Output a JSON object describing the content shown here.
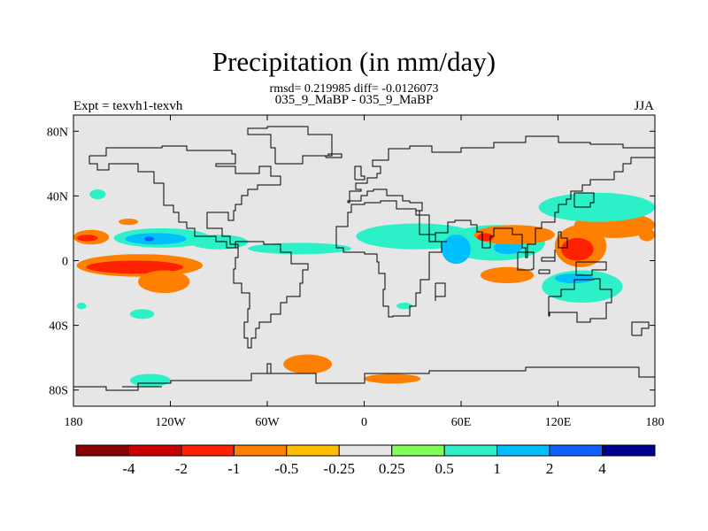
{
  "chart_data": {
    "type": "heatmap",
    "title": "Precipitation (in mm/day)",
    "subtitle": "rmsd= 0.219985 diff= -0.0126073",
    "subtitle2": "035_9_MaBP - 035_9_MaBP",
    "left_string": "Expt = texvh1-texvh",
    "right_string": "JJA",
    "x_ticks": [
      "180",
      "120W",
      "60W",
      "0",
      "60E",
      "120E",
      "180"
    ],
    "x_tick_values": [
      -180,
      -120,
      -60,
      0,
      60,
      120,
      180
    ],
    "y_ticks": [
      "80N",
      "40N",
      "0",
      "40S",
      "80S"
    ],
    "y_tick_values": [
      80,
      40,
      0,
      -40,
      -80
    ],
    "xlim": [
      -180,
      180
    ],
    "ylim": [
      -90,
      90
    ],
    "colorbar": {
      "labels": [
        "-4",
        "-2",
        "-1",
        "-0.5",
        "-0.25",
        "0.25",
        "0.5",
        "1",
        "2",
        "4"
      ],
      "colors": [
        "#8b0000",
        "#cc0000",
        "#ff2200",
        "#ff7f00",
        "#ffbf00",
        "#e6e6e6",
        "#80ff5a",
        "#2bf0c8",
        "#00bfff",
        "#1060ff",
        "#000090"
      ]
    },
    "background_color": "#e6e6e6",
    "regions": [
      {
        "level": "-0.5",
        "lon": [
          -180,
          -158
        ],
        "lat": [
          10,
          19
        ]
      },
      {
        "level": "-1",
        "lon": [
          -178,
          -165
        ],
        "lat": [
          12,
          16
        ]
      },
      {
        "level": "-0.5",
        "lon": [
          -152,
          -140
        ],
        "lat": [
          22,
          26
        ]
      },
      {
        "level": "-0.5",
        "lon": [
          -178,
          -100
        ],
        "lat": [
          -10,
          4
        ]
      },
      {
        "level": "-1",
        "lon": [
          -172,
          -112
        ],
        "lat": [
          -8,
          0
        ]
      },
      {
        "level": "-0.5",
        "lon": [
          -140,
          -108
        ],
        "lat": [
          -20,
          -6
        ]
      },
      {
        "level": "0.5",
        "lon": [
          -155,
          -95
        ],
        "lat": [
          8,
          20
        ]
      },
      {
        "level": "1",
        "lon": [
          -148,
          -110
        ],
        "lat": [
          10,
          17
        ]
      },
      {
        "level": "2",
        "lon": [
          -136,
          -130
        ],
        "lat": [
          12,
          15
        ]
      },
      {
        "level": "0.5",
        "lon": [
          -108,
          -72
        ],
        "lat": [
          7,
          16
        ]
      },
      {
        "level": "0.5",
        "lon": [
          -72,
          -8
        ],
        "lat": [
          4,
          11
        ]
      },
      {
        "level": "0.5",
        "lon": [
          -5,
          70
        ],
        "lat": [
          7,
          23
        ]
      },
      {
        "level": "0.5",
        "lon": [
          50,
          112
        ],
        "lat": [
          0,
          22
        ]
      },
      {
        "level": "1",
        "lon": [
          48,
          66
        ],
        "lat": [
          -2,
          16
        ]
      },
      {
        "level": "1",
        "lon": [
          80,
          98
        ],
        "lat": [
          4,
          12
        ]
      },
      {
        "level": "-0.5",
        "lon": [
          68,
          118
        ],
        "lat": [
          10,
          22
        ]
      },
      {
        "level": "-1",
        "lon": [
          70,
          80
        ],
        "lat": [
          12,
          17
        ]
      },
      {
        "level": "-0.5",
        "lon": [
          118,
          150
        ],
        "lat": [
          -4,
          22
        ]
      },
      {
        "level": "-1",
        "lon": [
          122,
          142
        ],
        "lat": [
          0,
          14
        ]
      },
      {
        "level": "-0.5",
        "lon": [
          72,
          105
        ],
        "lat": [
          -14,
          -4
        ]
      },
      {
        "level": "0.5",
        "lon": [
          110,
          160
        ],
        "lat": [
          -26,
          -6
        ]
      },
      {
        "level": "1",
        "lon": [
          118,
          142
        ],
        "lat": [
          -14,
          -8
        ]
      },
      {
        "level": "-0.5",
        "lon": [
          130,
          180
        ],
        "lat": [
          14,
          30
        ]
      },
      {
        "level": "0.5",
        "lon": [
          108,
          180
        ],
        "lat": [
          24,
          42
        ]
      },
      {
        "level": "-0.5",
        "lon": [
          170,
          180
        ],
        "lat": [
          12,
          20
        ]
      },
      {
        "level": "0.5",
        "lon": [
          -170,
          -160
        ],
        "lat": [
          38,
          44
        ]
      },
      {
        "level": "0.5",
        "lon": [
          -145,
          -130
        ],
        "lat": [
          -36,
          -30
        ]
      },
      {
        "level": "-0.5",
        "lon": [
          -50,
          -20
        ],
        "lat": [
          -70,
          -58
        ]
      },
      {
        "level": "-0.5",
        "lon": [
          0,
          35
        ],
        "lat": [
          -76,
          -70
        ]
      },
      {
        "level": "0.5",
        "lon": [
          -145,
          -120
        ],
        "lat": [
          -78,
          -70
        ]
      },
      {
        "level": "0.5",
        "lon": [
          20,
          30
        ],
        "lat": [
          -30,
          -26
        ]
      },
      {
        "level": "0.5",
        "lon": [
          -178,
          -172
        ],
        "lat": [
          -30,
          -26
        ]
      }
    ],
    "coastlines": [
      [
        [
          -170,
          65
        ],
        [
          -160,
          70
        ],
        [
          -140,
          70
        ],
        [
          -125,
          71
        ],
        [
          -110,
          68
        ],
        [
          -95,
          68
        ],
        [
          -82,
          66
        ],
        [
          -80,
          60
        ],
        [
          -92,
          58
        ],
        [
          -80,
          54
        ],
        [
          -65,
          58
        ],
        [
          -58,
          52
        ],
        [
          -52,
          47
        ],
        [
          -66,
          44
        ],
        [
          -72,
          40
        ],
        [
          -76,
          35
        ],
        [
          -80,
          31
        ],
        [
          -81,
          25
        ],
        [
          -84,
          30
        ],
        [
          -90,
          30
        ],
        [
          -97,
          26
        ],
        [
          -97,
          20
        ],
        [
          -90,
          20
        ],
        [
          -88,
          15
        ],
        [
          -83,
          10
        ],
        [
          -78,
          8
        ],
        [
          -80,
          8
        ],
        [
          -85,
          12
        ],
        [
          -92,
          15
        ],
        [
          -105,
          20
        ],
        [
          -110,
          24
        ],
        [
          -115,
          30
        ],
        [
          -118,
          34
        ],
        [
          -124,
          40
        ],
        [
          -124,
          48
        ],
        [
          -130,
          55
        ],
        [
          -140,
          60
        ],
        [
          -150,
          60
        ],
        [
          -158,
          56
        ],
        [
          -165,
          60
        ],
        [
          -170,
          65
        ]
      ],
      [
        [
          -80,
          12
        ],
        [
          -72,
          12
        ],
        [
          -62,
          10
        ],
        [
          -52,
          5
        ],
        [
          -45,
          -2
        ],
        [
          -35,
          -6
        ],
        [
          -38,
          -14
        ],
        [
          -40,
          -22
        ],
        [
          -48,
          -26
        ],
        [
          -52,
          -33
        ],
        [
          -58,
          -38
        ],
        [
          -65,
          -42
        ],
        [
          -67,
          -48
        ],
        [
          -70,
          -54
        ],
        [
          -72,
          -48
        ],
        [
          -74,
          -38
        ],
        [
          -72,
          -30
        ],
        [
          -71,
          -20
        ],
        [
          -76,
          -14
        ],
        [
          -81,
          -5
        ],
        [
          -80,
          2
        ],
        [
          -78,
          8
        ],
        [
          -80,
          12
        ]
      ],
      [
        [
          -55,
          60
        ],
        [
          -45,
          60
        ],
        [
          -38,
          65
        ],
        [
          -20,
          70
        ],
        [
          -20,
          78
        ],
        [
          -35,
          83
        ],
        [
          -60,
          82
        ],
        [
          -72,
          78
        ],
        [
          -58,
          70
        ],
        [
          -55,
          60
        ]
      ],
      [
        [
          -10,
          36
        ],
        [
          -9,
          43
        ],
        [
          -2,
          44
        ],
        [
          -5,
          48
        ],
        [
          2,
          51
        ],
        [
          8,
          54
        ],
        [
          10,
          58
        ],
        [
          5,
          62
        ],
        [
          15,
          69
        ],
        [
          28,
          71
        ],
        [
          42,
          67
        ],
        [
          60,
          70
        ],
        [
          80,
          73
        ],
        [
          100,
          77
        ],
        [
          120,
          73
        ],
        [
          140,
          72
        ],
        [
          160,
          70
        ],
        [
          180,
          68
        ],
        [
          180,
          64
        ],
        [
          165,
          60
        ],
        [
          160,
          55
        ],
        [
          155,
          50
        ],
        [
          140,
          47
        ],
        [
          135,
          43
        ],
        [
          128,
          38
        ],
        [
          125,
          35
        ],
        [
          120,
          30
        ],
        [
          118,
          24
        ],
        [
          110,
          20
        ],
        [
          106,
          10
        ],
        [
          101,
          2
        ],
        [
          100,
          8
        ],
        [
          98,
          16
        ],
        [
          92,
          20
        ],
        [
          86,
          20
        ],
        [
          80,
          15
        ],
        [
          78,
          8
        ],
        [
          73,
          18
        ],
        [
          70,
          22
        ],
        [
          66,
          25
        ],
        [
          58,
          25
        ],
        [
          56,
          24
        ],
        [
          52,
          17
        ],
        [
          44,
          12
        ],
        [
          40,
          16
        ],
        [
          34,
          28
        ],
        [
          32,
          31
        ],
        [
          36,
          36
        ],
        [
          28,
          37
        ],
        [
          24,
          40
        ],
        [
          18,
          40
        ],
        [
          14,
          44
        ],
        [
          10,
          44
        ],
        [
          6,
          43
        ],
        [
          2,
          40
        ],
        [
          -2,
          37
        ],
        [
          -10,
          36
        ]
      ],
      [
        [
          -17,
          15
        ],
        [
          -17,
          21
        ],
        [
          -10,
          30
        ],
        [
          -8,
          35
        ],
        [
          0,
          36
        ],
        [
          10,
          37
        ],
        [
          20,
          32
        ],
        [
          32,
          31
        ],
        [
          34,
          28
        ],
        [
          40,
          16
        ],
        [
          44,
          12
        ],
        [
          51,
          12
        ],
        [
          48,
          5
        ],
        [
          40,
          -5
        ],
        [
          40,
          -12
        ],
        [
          35,
          -20
        ],
        [
          32,
          -28
        ],
        [
          28,
          -34
        ],
        [
          18,
          -35
        ],
        [
          15,
          -28
        ],
        [
          12,
          -18
        ],
        [
          13,
          -8
        ],
        [
          9,
          -1
        ],
        [
          8,
          4
        ],
        [
          0,
          5
        ],
        [
          -8,
          5
        ],
        [
          -13,
          8
        ],
        [
          -17,
          15
        ]
      ],
      [
        [
          44,
          -14
        ],
        [
          50,
          -14
        ],
        [
          50,
          -22
        ],
        [
          44,
          -25
        ],
        [
          44,
          -14
        ]
      ],
      [
        [
          114,
          -22
        ],
        [
          122,
          -18
        ],
        [
          130,
          -12
        ],
        [
          136,
          -12
        ],
        [
          142,
          -11
        ],
        [
          146,
          -18
        ],
        [
          153,
          -26
        ],
        [
          150,
          -36
        ],
        [
          140,
          -38
        ],
        [
          132,
          -32
        ],
        [
          115,
          -34
        ],
        [
          114,
          -22
        ]
      ],
      [
        [
          95,
          5
        ],
        [
          105,
          -5
        ],
        [
          104,
          -6
        ],
        [
          95,
          5
        ]
      ],
      [
        [
          108,
          -6
        ],
        [
          115,
          -8
        ],
        [
          108,
          -8
        ],
        [
          108,
          -6
        ]
      ],
      [
        [
          110,
          2
        ],
        [
          118,
          7
        ],
        [
          118,
          0
        ],
        [
          110,
          2
        ]
      ],
      [
        [
          131,
          -1
        ],
        [
          150,
          -6
        ],
        [
          141,
          -9
        ],
        [
          131,
          -1
        ]
      ],
      [
        [
          120,
          18
        ],
        [
          122,
          14
        ],
        [
          126,
          8
        ],
        [
          120,
          18
        ]
      ],
      [
        [
          130,
          33
        ],
        [
          140,
          36
        ],
        [
          142,
          42
        ],
        [
          130,
          33
        ]
      ],
      [
        [
          -6,
          50
        ],
        [
          0,
          52
        ],
        [
          -2,
          58
        ],
        [
          -6,
          50
        ]
      ],
      [
        [
          -24,
          64
        ],
        [
          -14,
          66
        ],
        [
          -22,
          65
        ],
        [
          -24,
          64
        ]
      ],
      [
        [
          166,
          -46
        ],
        [
          172,
          -42
        ],
        [
          176,
          -38
        ],
        [
          166,
          -46
        ]
      ],
      [
        [
          -180,
          -78
        ],
        [
          -160,
          -80
        ],
        [
          -140,
          -76
        ],
        [
          -120,
          -74
        ],
        [
          -100,
          -74
        ],
        [
          -70,
          -70
        ],
        [
          -58,
          -64
        ],
        [
          -60,
          -70
        ],
        [
          -30,
          -76
        ],
        [
          0,
          -70
        ],
        [
          40,
          -68
        ],
        [
          70,
          -68
        ],
        [
          100,
          -66
        ],
        [
          140,
          -66
        ],
        [
          170,
          -72
        ],
        [
          180,
          -78
        ]
      ],
      [
        [
          -150,
          -78
        ],
        [
          -125,
          -78
        ]
      ]
    ]
  }
}
